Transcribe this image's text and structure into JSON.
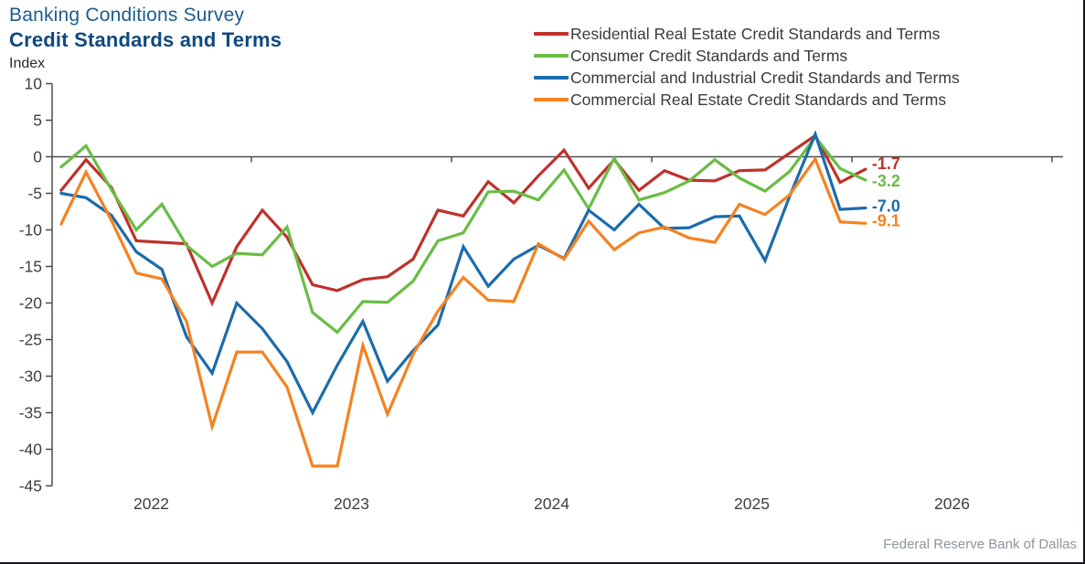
{
  "header": {
    "suptitle": "Banking Conditions Survey",
    "title": "Credit Standards and Terms",
    "axis_unit_label": "Index"
  },
  "footer": {
    "source": "Federal Reserve Bank of Dallas"
  },
  "chart_data": {
    "type": "line",
    "title": "Credit Standards and Terms",
    "ylabel": "Index",
    "ylim": [
      -45,
      10
    ],
    "ytick_labels": [
      "10",
      "5",
      "0",
      "-5",
      "-10",
      "-15",
      "-20",
      "-25",
      "-30",
      "-35",
      "-40",
      "-45"
    ],
    "ytick_values": [
      10,
      5,
      0,
      -5,
      -10,
      -15,
      -20,
      -25,
      -30,
      -35,
      -40,
      -45
    ],
    "xtick_year_labels": [
      "2022",
      "2023",
      "2024",
      "2025",
      "2026"
    ],
    "xlim_years": [
      2022,
      2027.05
    ],
    "grid": false,
    "zero_line": true,
    "legend_position": "top-right",
    "x_years": [
      2022.05,
      2022.174,
      2022.301,
      2022.425,
      2022.553,
      2022.676,
      2022.804,
      2022.927,
      2023.055,
      2023.178,
      2023.306,
      2023.429,
      2023.557,
      2023.68,
      2023.808,
      2023.932,
      2024.059,
      2024.183,
      2024.311,
      2024.434,
      2024.562,
      2024.685,
      2024.813,
      2024.936,
      2025.064,
      2025.187,
      2025.315,
      2025.438,
      2025.566,
      2025.689,
      2025.817,
      2025.941,
      2026.068
    ],
    "series": [
      {
        "name": "Residential Real Estate Credit Standards and Terms",
        "color": "#bf312b",
        "end_label": "-1.7",
        "values": [
          -4.6,
          -0.4,
          -4.2,
          -11.5,
          -11.7,
          -11.9,
          -20.0,
          -12.3,
          -7.3,
          -11.0,
          -17.5,
          -18.3,
          -16.8,
          -16.4,
          -14.0,
          -7.3,
          -8.1,
          -3.4,
          -6.3,
          -2.6,
          0.9,
          -4.3,
          -0.4,
          -4.6,
          -1.9,
          -3.2,
          -3.3,
          -1.9,
          -1.8,
          0.5,
          2.9,
          -3.5,
          -1.7
        ]
      },
      {
        "name": "Consumer Credit Standards and Terms",
        "color": "#69bd45",
        "end_label": "-3.2",
        "values": [
          -1.4,
          1.5,
          -4.5,
          -10.0,
          -6.5,
          -12.1,
          -15.0,
          -13.2,
          -13.4,
          -9.6,
          -21.3,
          -24.0,
          -19.8,
          -19.9,
          -17.0,
          -11.5,
          -10.4,
          -4.8,
          -4.7,
          -5.9,
          -1.8,
          -7.1,
          -0.2,
          -5.9,
          -4.9,
          -3.3,
          -0.4,
          -2.9,
          -4.7,
          -2.0,
          2.7,
          -1.6,
          -3.2
        ]
      },
      {
        "name": "Commercial and Industrial Credit Standards and Terms",
        "color": "#1b6cab",
        "end_label": "-7.0",
        "values": [
          -5.0,
          -5.6,
          -8.0,
          -13.0,
          -15.4,
          -24.6,
          -29.6,
          -20.0,
          -23.5,
          -28.0,
          -35.0,
          -28.5,
          -22.5,
          -30.7,
          -26.5,
          -23.0,
          -12.3,
          -17.7,
          -14.0,
          -12.1,
          -13.9,
          -7.3,
          -10.0,
          -6.5,
          -9.8,
          -9.7,
          -8.2,
          -8.1,
          -14.2,
          -5.4,
          3.1,
          -7.2,
          -7.0
        ]
      },
      {
        "name": "Commercial Real Estate Credit Standards and Terms",
        "color": "#f58220",
        "end_label": "-9.1",
        "values": [
          -9.2,
          -2.1,
          -8.7,
          -15.9,
          -16.7,
          -22.5,
          -36.9,
          -26.7,
          -26.7,
          -31.5,
          -42.3,
          -42.3,
          -25.8,
          -35.2,
          -27.0,
          -21.1,
          -16.5,
          -19.6,
          -19.8,
          -11.9,
          -14.0,
          -8.8,
          -12.7,
          -10.4,
          -9.6,
          -11.1,
          -11.7,
          -6.5,
          -7.9,
          -5.2,
          -0.3,
          -8.9,
          -9.1
        ]
      }
    ]
  }
}
